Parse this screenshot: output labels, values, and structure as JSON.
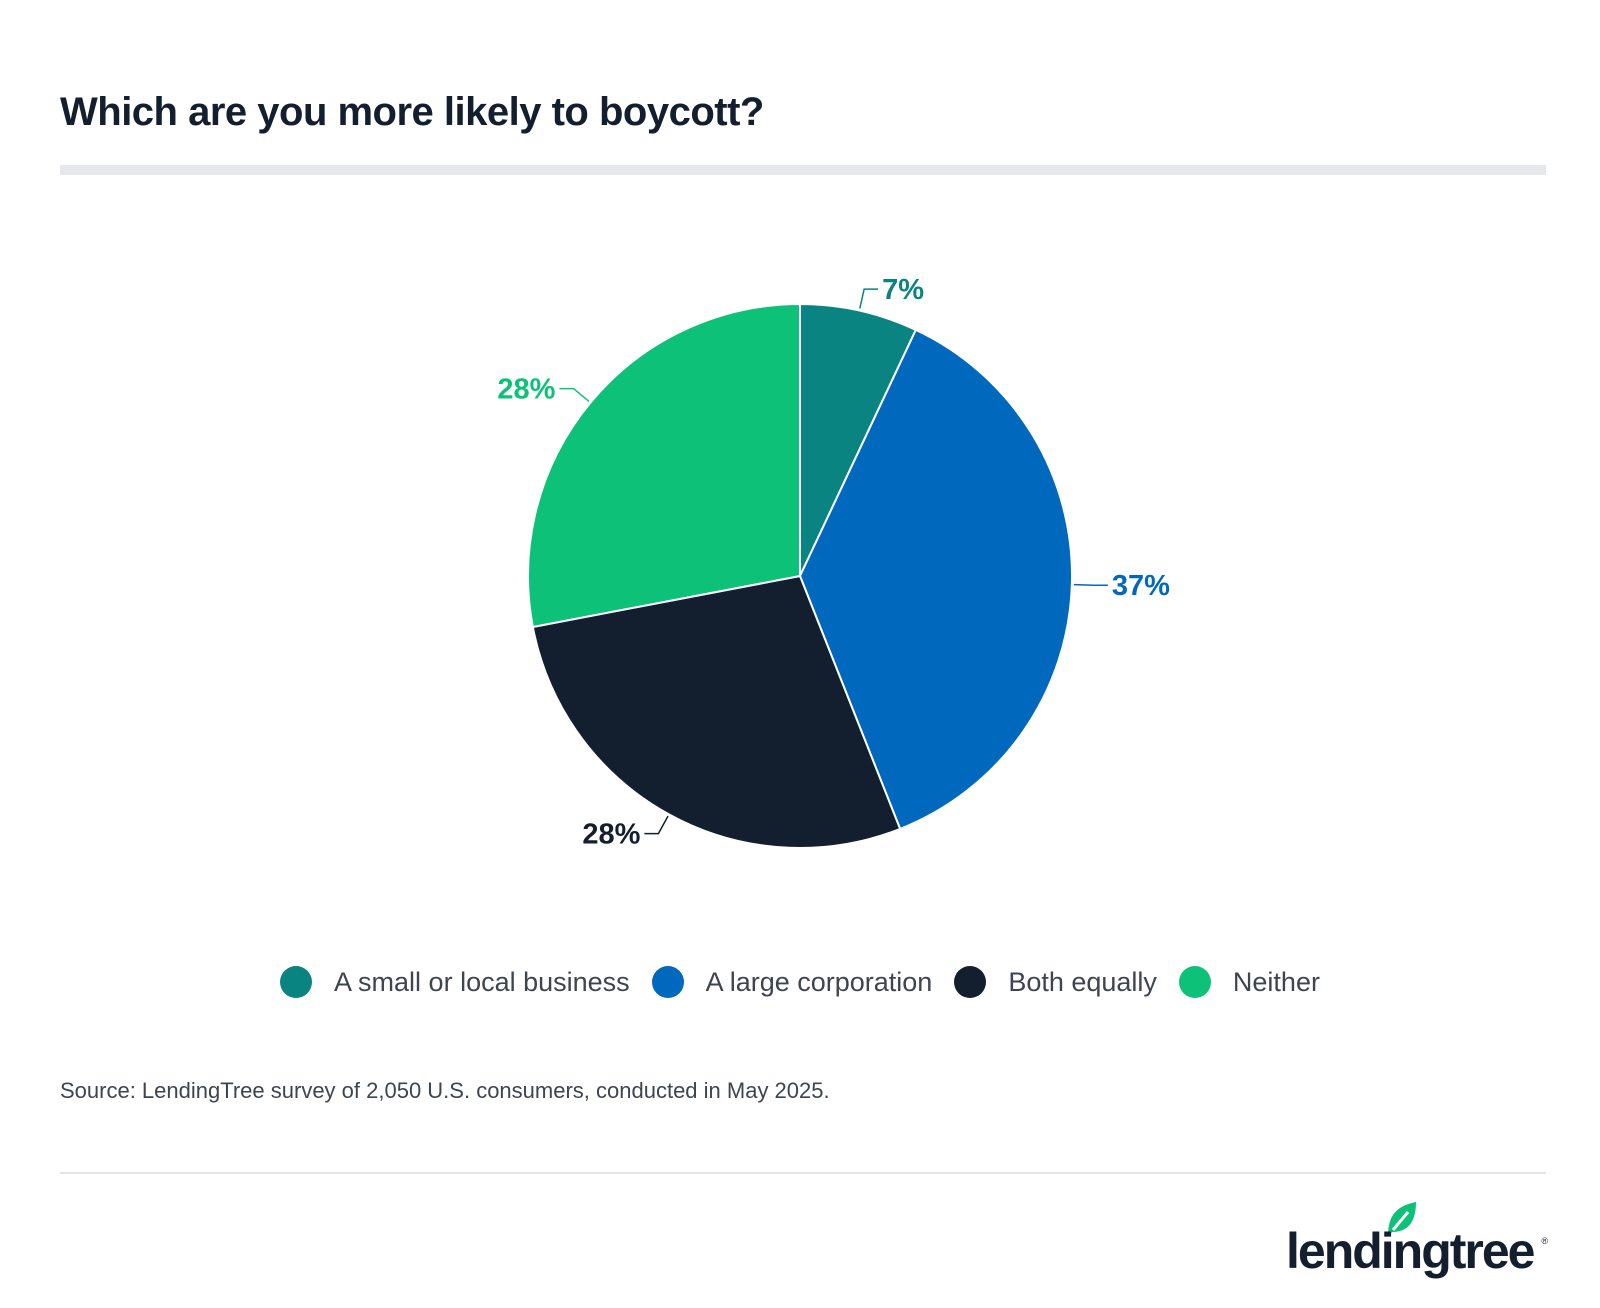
{
  "title": "Which are you more likely to boycott?",
  "chart_data": {
    "type": "pie",
    "slices": [
      {
        "name": "A small or local business",
        "value": 7,
        "label": "7%",
        "color": "#0a8480"
      },
      {
        "name": "A large corporation",
        "value": 37,
        "label": "37%",
        "color": "#0068bd"
      },
      {
        "name": "Both equally",
        "value": 28,
        "label": "28%",
        "color": "#131f2e"
      },
      {
        "name": "Neither",
        "value": 28,
        "label": "28%",
        "color": "#0dc278"
      }
    ],
    "legend_position": "bottom"
  },
  "source": "Source: LendingTree survey of 2,050 U.S. consumers, conducted in May 2025.",
  "logo": {
    "text": "lendingtree",
    "leaf_color": "#0dc278"
  }
}
